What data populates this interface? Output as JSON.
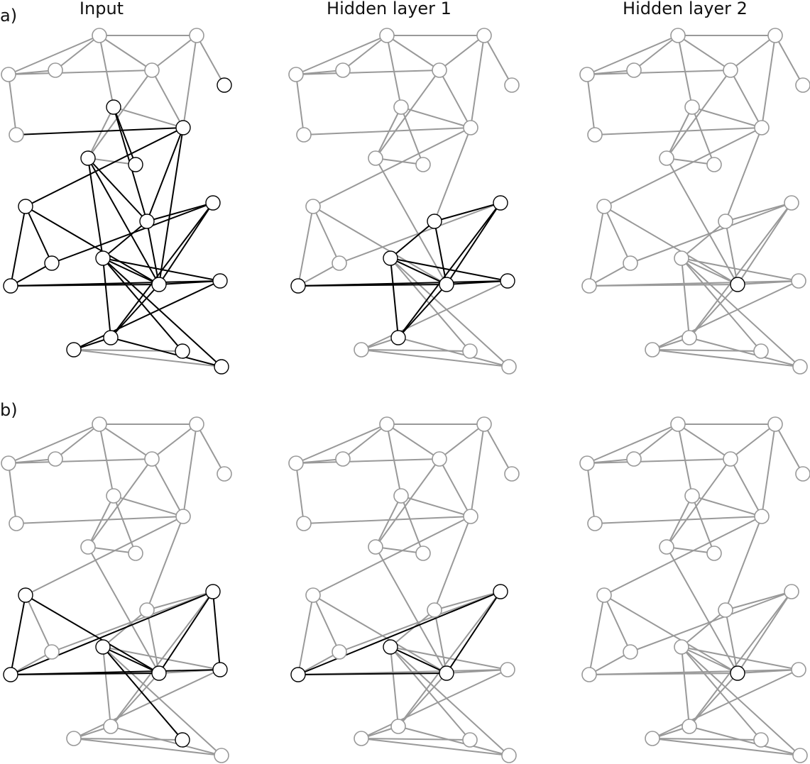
{
  "column_titles": [
    "Input",
    "Hidden layer 1",
    "Hidden layer 2"
  ],
  "row_labels": [
    "a)",
    "b)"
  ],
  "colors": {
    "edge": "#999999",
    "highlight_edge": "#000000",
    "empty_node": "#ffffff",
    "center_node": "#7a3d24",
    "first_ring_node": "#d4886a",
    "second_ring_node": "#e8b9a5"
  },
  "graph": {
    "node_ids": [
      "n1",
      "n2",
      "n3",
      "n4",
      "n5",
      "n6",
      "n7",
      "n8",
      "n9",
      "n10",
      "n11",
      "n12",
      "n13",
      "n14",
      "n15",
      "n16",
      "n17",
      "n18",
      "n19",
      "n20",
      "n21",
      "n22",
      "n23"
    ],
    "edges": [
      [
        "n1",
        "n2"
      ],
      [
        "n1",
        "n3"
      ],
      [
        "n1",
        "n4"
      ],
      [
        "n1",
        "n8"
      ],
      [
        "n2",
        "n3"
      ],
      [
        "n3",
        "n4"
      ],
      [
        "n3",
        "n5"
      ],
      [
        "n3",
        "n7"
      ],
      [
        "n4",
        "n5"
      ],
      [
        "n4",
        "n6"
      ],
      [
        "n4",
        "n10"
      ],
      [
        "n5",
        "n6"
      ],
      [
        "n5",
        "n9"
      ],
      [
        "n6",
        "n7"
      ],
      [
        "n6",
        "n8"
      ],
      [
        "n6",
        "n12"
      ],
      [
        "n6",
        "n13"
      ],
      [
        "n7",
        "n10"
      ],
      [
        "n7",
        "n11"
      ],
      [
        "n11",
        "n10"
      ],
      [
        "n12",
        "n15"
      ],
      [
        "n12",
        "n16"
      ],
      [
        "n12",
        "n18"
      ],
      [
        "n13",
        "n14"
      ],
      [
        "n13",
        "n17"
      ],
      [
        "n13",
        "n16"
      ],
      [
        "n10",
        "n16"
      ],
      [
        "n14",
        "n17"
      ],
      [
        "n14",
        "n18"
      ],
      [
        "n16",
        "n18"
      ],
      [
        "n16",
        "n17"
      ],
      [
        "n16",
        "n15"
      ],
      [
        "n15",
        "n19"
      ],
      [
        "n15",
        "n20"
      ],
      [
        "n15",
        "n22"
      ],
      [
        "n15",
        "n23"
      ],
      [
        "n16",
        "n19"
      ],
      [
        "n16",
        "n20"
      ],
      [
        "n17",
        "n19"
      ],
      [
        "n18",
        "n20"
      ],
      [
        "n20",
        "n21"
      ],
      [
        "n20",
        "n23"
      ],
      [
        "n21",
        "n22"
      ],
      [
        "n21",
        "n23"
      ],
      [
        "n19",
        "n21"
      ]
    ]
  },
  "panels": [
    {
      "row": "a)",
      "column": "Input",
      "center": "n16",
      "first_ring": [
        "n12",
        "n17",
        "n18",
        "n20",
        "n19",
        "n15"
      ],
      "second_ring": [
        "n6",
        "n7",
        "n13",
        "n11",
        "n14",
        "n21",
        "n22",
        "n23",
        "n10",
        "n9"
      ],
      "highlight_edges": [
        [
          "n12",
          "n6"
        ],
        [
          "n12",
          "n7"
        ],
        [
          "n6",
          "n16"
        ],
        [
          "n6",
          "n8"
        ],
        [
          "n6",
          "n13"
        ],
        [
          "n12",
          "n10"
        ],
        [
          "n10",
          "n15"
        ],
        [
          "n10",
          "n16"
        ],
        [
          "n7",
          "n11"
        ],
        [
          "n12",
          "n15"
        ],
        [
          "n12",
          "n16"
        ],
        [
          "n12",
          "n18"
        ],
        [
          "n13",
          "n16"
        ],
        [
          "n13",
          "n14"
        ],
        [
          "n13",
          "n17"
        ],
        [
          "n14",
          "n17"
        ],
        [
          "n14",
          "n18"
        ],
        [
          "n16",
          "n18"
        ],
        [
          "n16",
          "n17"
        ],
        [
          "n16",
          "n15"
        ],
        [
          "n16",
          "n19"
        ],
        [
          "n16",
          "n20"
        ],
        [
          "n17",
          "n19"
        ],
        [
          "n18",
          "n20"
        ],
        [
          "n20",
          "n21"
        ],
        [
          "n15",
          "n19"
        ],
        [
          "n15",
          "n20"
        ],
        [
          "n15",
          "n22"
        ],
        [
          "n15",
          "n23"
        ],
        [
          "n20",
          "n23"
        ],
        [
          "n19",
          "n21"
        ]
      ]
    },
    {
      "row": "a)",
      "column": "Hidden layer 1",
      "center": "n16",
      "first_ring": [
        "n12",
        "n17",
        "n18",
        "n20",
        "n19",
        "n15"
      ],
      "second_ring": [],
      "highlight_edges": [
        [
          "n12",
          "n15"
        ],
        [
          "n12",
          "n16"
        ],
        [
          "n12",
          "n18"
        ],
        [
          "n16",
          "n18"
        ],
        [
          "n16",
          "n17"
        ],
        [
          "n16",
          "n15"
        ],
        [
          "n16",
          "n19"
        ],
        [
          "n16",
          "n20"
        ],
        [
          "n17",
          "n19"
        ],
        [
          "n18",
          "n20"
        ],
        [
          "n15",
          "n19"
        ],
        [
          "n15",
          "n20"
        ]
      ]
    },
    {
      "row": "a)",
      "column": "Hidden layer 2",
      "center": "n16",
      "first_ring": [],
      "second_ring": [],
      "highlight_edges": []
    },
    {
      "row": "b)",
      "column": "Input",
      "center": "n16",
      "first_ring": [
        "n17",
        "n18",
        "n15"
      ],
      "second_ring": [
        "n13",
        "n19",
        "n22"
      ],
      "highlight_edges": [
        [
          "n13",
          "n16"
        ],
        [
          "n13",
          "n17"
        ],
        [
          "n16",
          "n18"
        ],
        [
          "n16",
          "n17"
        ],
        [
          "n16",
          "n15"
        ],
        [
          "n17",
          "n19"
        ],
        [
          "n18",
          "n19"
        ],
        [
          "n15",
          "n22"
        ],
        [
          "n18",
          "n17"
        ]
      ]
    },
    {
      "row": "b)",
      "column": "Hidden layer 1",
      "center": "n16",
      "first_ring": [
        "n17",
        "n18",
        "n15"
      ],
      "second_ring": [],
      "highlight_edges": [
        [
          "n16",
          "n18"
        ],
        [
          "n16",
          "n17"
        ],
        [
          "n16",
          "n15"
        ],
        [
          "n18",
          "n17"
        ]
      ]
    },
    {
      "row": "b)",
      "column": "Hidden layer 2",
      "center": "n16",
      "first_ring": [],
      "second_ring": [],
      "highlight_edges": []
    }
  ]
}
